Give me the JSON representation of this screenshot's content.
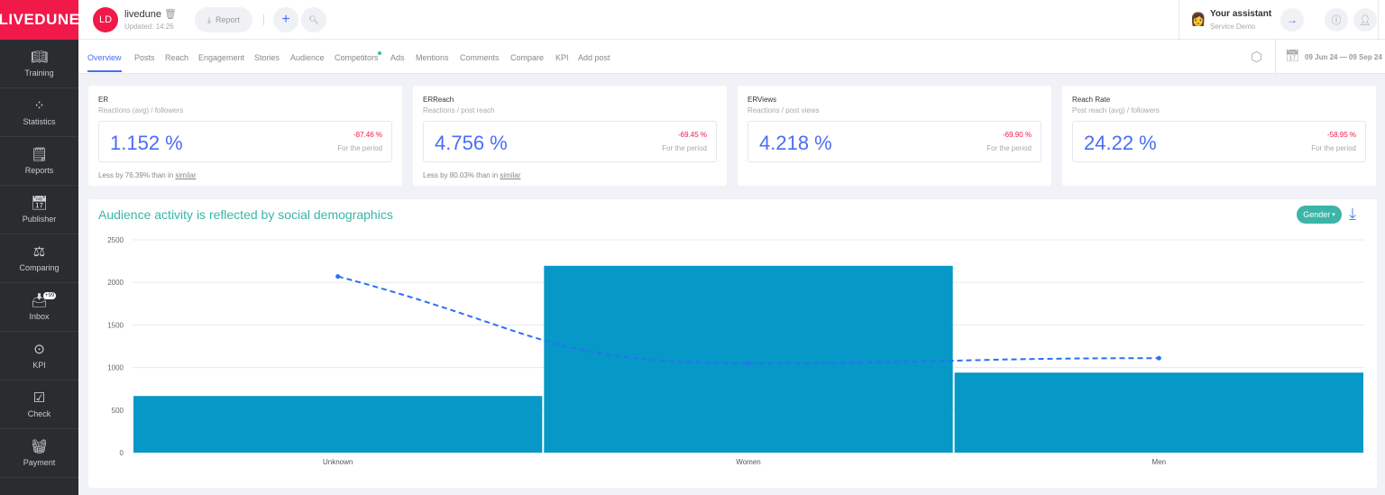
{
  "brand": "LIVEDUNE",
  "sidebar": {
    "items": [
      {
        "label": "Training",
        "icon": "book-icon"
      },
      {
        "label": "Statistics",
        "icon": "grid-dots-icon"
      },
      {
        "label": "Reports",
        "icon": "report-icon"
      },
      {
        "label": "Publisher",
        "icon": "calendar-plus-icon"
      },
      {
        "label": "Comparing",
        "icon": "scales-icon"
      },
      {
        "label": "Inbox",
        "icon": "inbox-icon",
        "badge": "+99"
      },
      {
        "label": "KPI",
        "icon": "target-icon"
      },
      {
        "label": "Check",
        "icon": "shield-check-icon"
      },
      {
        "label": "Payment",
        "icon": "basket-icon"
      }
    ]
  },
  "header": {
    "avatar": "LD",
    "account": "livedune",
    "updated": "Updated: 14:26",
    "report": "Report",
    "assistant_title": "Your assistant",
    "assistant_sub": "Service Demo"
  },
  "tabs": [
    "Overview",
    "Posts",
    "Reach",
    "Engagement",
    "Stories",
    "Audience",
    "Competitors",
    "Ads",
    "Mentions",
    "Comments",
    "Compare",
    "KPI",
    "Add post"
  ],
  "date_range": "09 Jun 24 — 09 Sep 24",
  "cards": [
    {
      "title": "ER",
      "subtitle": "Reactions (avg) / followers",
      "value": "1.152 %",
      "change": "-87.46 %",
      "period": "For the period",
      "note": "Less by 76.39% than in",
      "link": "similar"
    },
    {
      "title": "ERReach",
      "subtitle": "Reactions / post reach",
      "value": "4.756 %",
      "change": "-69.45 %",
      "period": "For the period",
      "note": "Less by 80.03% than in",
      "link": "similar"
    },
    {
      "title": "ERViews",
      "subtitle": "Reactions / post views",
      "value": "4.218 %",
      "change": "-69.90 %",
      "period": "For the period"
    },
    {
      "title": "Reach Rate",
      "subtitle": "Post reach (avg) / followers",
      "value": "24.22 %",
      "change": "-58.95 %",
      "period": "For the period"
    }
  ],
  "chart": {
    "title": "Audience activity is reflected by social demographics",
    "filter": "Gender"
  },
  "chart_data": {
    "type": "bar",
    "categories": [
      "Unknown",
      "Women",
      "Men"
    ],
    "series": [
      {
        "type": "bar",
        "values": [
          665,
          2195,
          940
        ]
      },
      {
        "type": "line",
        "values": [
          2070,
          1050,
          1110
        ]
      }
    ],
    "ylim": [
      0,
      2500
    ],
    "yticks": [
      0,
      500,
      1000,
      1500,
      2000,
      2500
    ],
    "grid": true,
    "colors": {
      "bar": "#0698c6",
      "line": "#2b6ff7"
    }
  }
}
